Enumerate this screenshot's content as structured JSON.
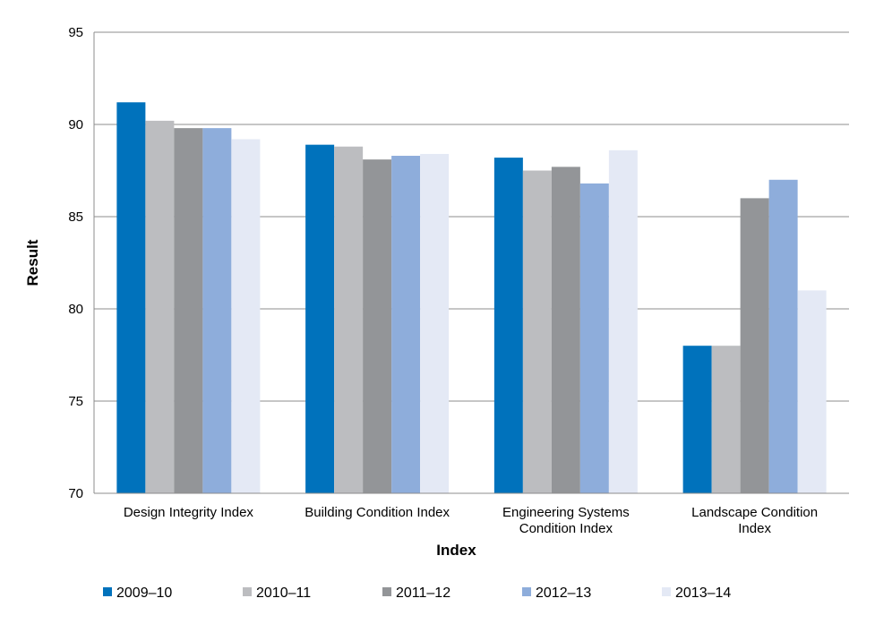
{
  "chart_data": {
    "type": "bar",
    "title": "",
    "xlabel": "Index",
    "ylabel": "Result",
    "ylim": [
      70,
      95
    ],
    "yticks": [
      70,
      75,
      80,
      85,
      90,
      95
    ],
    "grid": true,
    "legend_position": "bottom",
    "categories": [
      [
        "Design Integrity Index"
      ],
      [
        "Building Condition Index"
      ],
      [
        "Engineering Systems",
        "Condition Index"
      ],
      [
        "Landscape Condition",
        "Index"
      ]
    ],
    "series": [
      {
        "name": "2009–10",
        "color": "#0072bc",
        "values": [
          91.2,
          88.9,
          88.2,
          78.0
        ]
      },
      {
        "name": "2010–11",
        "color": "#bcbdc0",
        "values": [
          90.2,
          88.8,
          87.5,
          78.0
        ]
      },
      {
        "name": "2011–12",
        "color": "#939598",
        "values": [
          89.8,
          88.1,
          87.7,
          86.0
        ]
      },
      {
        "name": "2012–13",
        "color": "#8eaddb",
        "values": [
          89.8,
          88.3,
          86.8,
          87.0
        ]
      },
      {
        "name": "2013–14",
        "color": "#e4e9f5",
        "values": [
          89.2,
          88.4,
          88.6,
          81.0
        ]
      }
    ]
  }
}
